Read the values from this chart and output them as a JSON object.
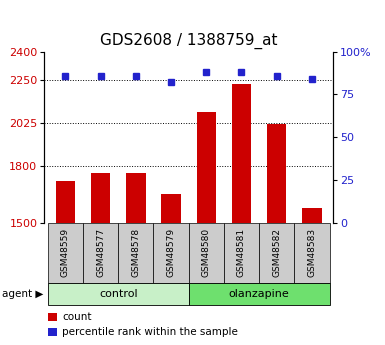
{
  "title": "GDS2608 / 1388759_at",
  "samples": [
    "GSM48559",
    "GSM48577",
    "GSM48578",
    "GSM48579",
    "GSM48580",
    "GSM48581",
    "GSM48582",
    "GSM48583"
  ],
  "counts": [
    1720,
    1760,
    1760,
    1650,
    2080,
    2230,
    2020,
    1575
  ],
  "percentile_ranks": [
    86,
    86,
    86,
    82,
    88,
    88,
    86,
    84
  ],
  "group_colors": [
    "#c8f0c8",
    "#6ee06e"
  ],
  "ylim_left": [
    1500,
    2400
  ],
  "yticks_left": [
    1500,
    1800,
    2025,
    2250,
    2400
  ],
  "ylim_right": [
    0,
    100
  ],
  "yticks_right": [
    0,
    25,
    50,
    75,
    100
  ],
  "bar_color": "#cc0000",
  "dot_color": "#2222cc",
  "bar_width": 0.55,
  "bar_color_left": "#cc0000",
  "dot_color_blue": "#2222cc",
  "title_fontsize": 11,
  "tick_fontsize": 8,
  "background_xlabel": "#cccccc",
  "legend_count": "count",
  "legend_percentile": "percentile rank within the sample"
}
